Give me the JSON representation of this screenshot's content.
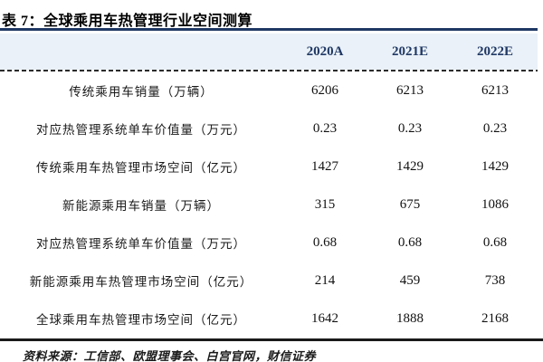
{
  "title": "表 7：全球乘用车热管理行业空间测算",
  "table": {
    "columns": [
      "2020A",
      "2021E",
      "2022E"
    ],
    "rows": [
      {
        "label": "传统乘用车销量（万辆）",
        "values": [
          "6206",
          "6213",
          "6213"
        ]
      },
      {
        "label": "对应热管理系统单车价值量（万元）",
        "values": [
          "0.23",
          "0.23",
          "0.23"
        ]
      },
      {
        "label": "传统乘用车热管理市场空间（亿元）",
        "values": [
          "1427",
          "1429",
          "1429"
        ]
      },
      {
        "label": "新能源乘用车销量（万辆）",
        "values": [
          "315",
          "675",
          "1086"
        ]
      },
      {
        "label": "对应热管理系统单车价值量（万元）",
        "values": [
          "0.68",
          "0.68",
          "0.68"
        ]
      },
      {
        "label": "新能源乘用车热管理市场空间（亿元）",
        "values": [
          "214",
          "459",
          "738"
        ]
      },
      {
        "label": "全球乘用车热管理市场空间（亿元）",
        "values": [
          "1642",
          "1888",
          "2168"
        ]
      }
    ]
  },
  "source": "资料来源：工信部、欧盟理事会、白宫官网，财信证券",
  "colors": {
    "accent_navy": "#1f3864",
    "header_bg": "#eaf1f8",
    "rule_black": "#1a1a1a"
  },
  "chart_data": {
    "type": "table",
    "title": "表 7：全球乘用车热管理行业空间测算",
    "columns": [
      "2020A",
      "2021E",
      "2022E"
    ],
    "row_labels": [
      "传统乘用车销量（万辆）",
      "对应热管理系统单车价值量（万元）",
      "传统乘用车热管理市场空间（亿元）",
      "新能源乘用车销量（万辆）",
      "对应热管理系统单车价值量（万元）",
      "新能源乘用车热管理市场空间（亿元）",
      "全球乘用车热管理市场空间（亿元）"
    ],
    "values": [
      [
        6206,
        6213,
        6213
      ],
      [
        0.23,
        0.23,
        0.23
      ],
      [
        1427,
        1429,
        1429
      ],
      [
        315,
        675,
        1086
      ],
      [
        0.68,
        0.68,
        0.68
      ],
      [
        214,
        459,
        738
      ],
      [
        1642,
        1888,
        2168
      ]
    ],
    "source_note": "资料来源：工信部、欧盟理事会、白宫官网，财信证券"
  }
}
